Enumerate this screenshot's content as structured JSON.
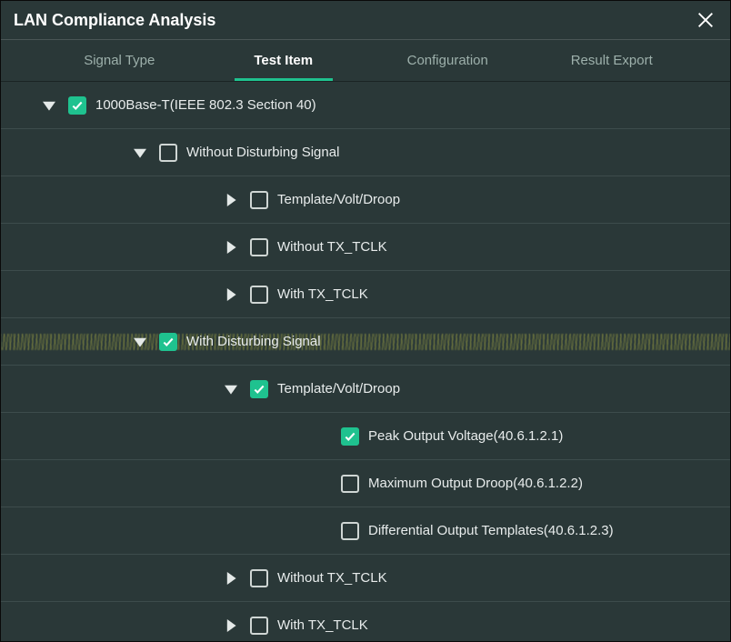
{
  "window": {
    "title": "LAN Compliance Analysis"
  },
  "tabs": {
    "items": [
      {
        "label": "Signal Type",
        "active": false
      },
      {
        "label": "Test Item",
        "active": true
      },
      {
        "label": "Configuration",
        "active": false
      },
      {
        "label": "Result Export",
        "active": false
      }
    ]
  },
  "colors": {
    "accent": "#1fc28f",
    "bg": "#2a3838",
    "text": "#e8ecec",
    "muted": "#9db0ab",
    "border": "#3d4c4c",
    "noise": "#b6b846"
  },
  "tree": [
    {
      "indent": 0,
      "expanded": true,
      "checked": true,
      "label": "1000Base-T(IEEE 802.3 Section 40)",
      "hasToggle": true,
      "noisy": false
    },
    {
      "indent": 1,
      "expanded": true,
      "checked": false,
      "label": "Without Disturbing Signal",
      "hasToggle": true,
      "noisy": false
    },
    {
      "indent": 2,
      "expanded": false,
      "checked": false,
      "label": "Template/Volt/Droop",
      "hasToggle": true,
      "noisy": false
    },
    {
      "indent": 2,
      "expanded": false,
      "checked": false,
      "label": "Without TX_TCLK",
      "hasToggle": true,
      "noisy": false
    },
    {
      "indent": 2,
      "expanded": false,
      "checked": false,
      "label": "With TX_TCLK",
      "hasToggle": true,
      "noisy": false
    },
    {
      "indent": 1,
      "expanded": true,
      "checked": true,
      "label": "With Disturbing Signal",
      "hasToggle": true,
      "noisy": true
    },
    {
      "indent": 2,
      "expanded": true,
      "checked": true,
      "label": "Template/Volt/Droop",
      "hasToggle": true,
      "noisy": false
    },
    {
      "indent": 3,
      "expanded": null,
      "checked": true,
      "label": "Peak Output Voltage(40.6.1.2.1)",
      "hasToggle": false,
      "noisy": false
    },
    {
      "indent": 3,
      "expanded": null,
      "checked": false,
      "label": "Maximum Output Droop(40.6.1.2.2)",
      "hasToggle": false,
      "noisy": false
    },
    {
      "indent": 3,
      "expanded": null,
      "checked": false,
      "label": "Differential Output Templates(40.6.1.2.3)",
      "hasToggle": false,
      "noisy": false
    },
    {
      "indent": 2,
      "expanded": false,
      "checked": false,
      "label": "Without TX_TCLK",
      "hasToggle": true,
      "noisy": false
    },
    {
      "indent": 2,
      "expanded": false,
      "checked": false,
      "label": "With TX_TCLK",
      "hasToggle": true,
      "noisy": false
    }
  ],
  "layout": {
    "indentPx": 100,
    "baseLeftPad": 42
  }
}
